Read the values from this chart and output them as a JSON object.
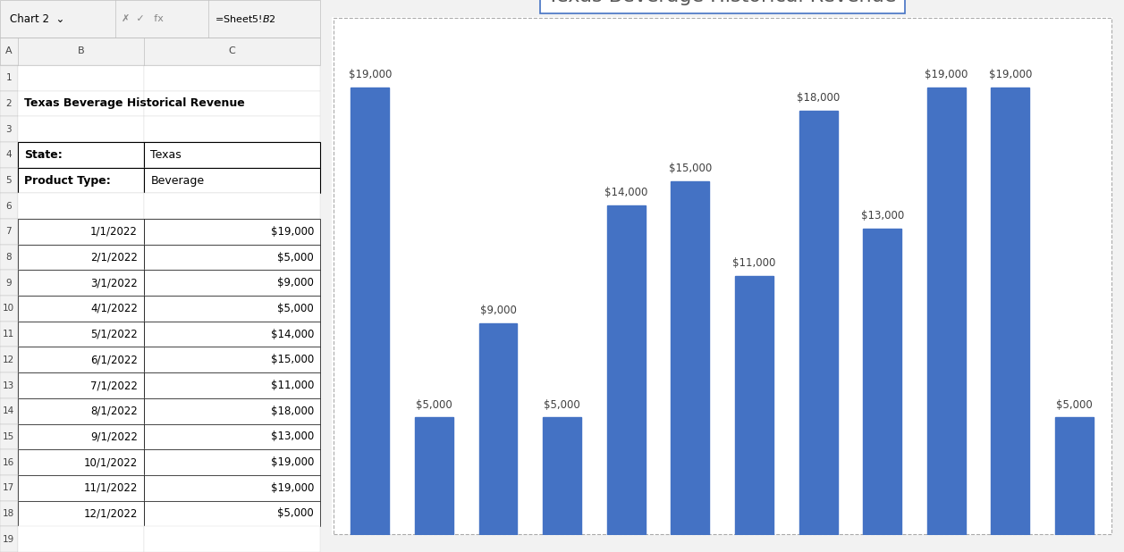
{
  "title": "Texas Beverage Historical Revenue",
  "spreadsheet_title": "Texas Beverage Historical Revenue",
  "state_label": "State:",
  "state_value": "Texas",
  "product_label": "Product Type:",
  "product_value": "Beverage",
  "dates": [
    "1/1/2022",
    "2/1/2022",
    "3/1/2022",
    "4/1/2022",
    "5/1/2022",
    "6/1/2022",
    "7/1/2022",
    "8/1/2022",
    "9/1/2022",
    "10/1/2022",
    "11/1/2022",
    "12/1/2022"
  ],
  "values": [
    19000,
    5000,
    9000,
    5000,
    14000,
    15000,
    11000,
    18000,
    13000,
    19000,
    19000,
    5000
  ],
  "bar_color": "#4472C4",
  "background_color": "#FFFFFF",
  "excel_bg": "#F2F2F2",
  "chart_bg": "#FFFFFF",
  "grid_color": "#D9D9D9",
  "title_font_size": 16,
  "annotation_font_size": 9,
  "ylim": [
    0,
    22000
  ],
  "bar_width": 0.6
}
